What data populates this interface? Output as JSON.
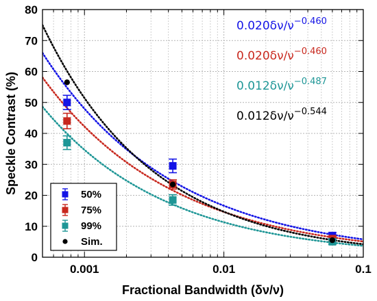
{
  "chart_data": {
    "type": "scatter",
    "xscale": "log",
    "xlim": [
      0.0005,
      0.1
    ],
    "ylim": [
      0,
      80
    ],
    "xlabel": "Fractional Bandwidth (δν/ν)",
    "ylabel": "Speckle Contrast (%)",
    "grid": true,
    "legend_position": "bottom-left",
    "x_ticks": [
      {
        "value": 0.001,
        "label": "0.001"
      },
      {
        "value": 0.01,
        "label": "0.01"
      },
      {
        "value": 0.1,
        "label": "0.1"
      }
    ],
    "y_ticks": [
      {
        "value": 0,
        "label": "0"
      },
      {
        "value": 10,
        "label": "10"
      },
      {
        "value": 20,
        "label": "20"
      },
      {
        "value": 30,
        "label": "30"
      },
      {
        "value": 40,
        "label": "40"
      },
      {
        "value": 50,
        "label": "50"
      },
      {
        "value": 60,
        "label": "60"
      },
      {
        "value": 70,
        "label": "70"
      },
      {
        "value": 80,
        "label": "80"
      }
    ],
    "series": [
      {
        "name": "50%",
        "color": "#1414e6",
        "marker": "square",
        "points": [
          {
            "x": 0.00075,
            "y": 50.0,
            "err": 2.3
          },
          {
            "x": 0.0043,
            "y": 29.5,
            "err": 2.2
          },
          {
            "x": 0.06,
            "y": 7.0,
            "err": 1.0
          }
        ],
        "fit": {
          "a": 0.02,
          "b": -0.46,
          "scale": 100
        },
        "annotation": {
          "prefix": "0.020",
          "expr": "δν/ν",
          "exponent": "−0.460"
        }
      },
      {
        "name": "75%",
        "color": "#c8281e",
        "marker": "square",
        "points": [
          {
            "x": 0.00075,
            "y": 44.0,
            "err": 2.5
          },
          {
            "x": 0.0043,
            "y": 23.5,
            "err": 1.5
          },
          {
            "x": 0.06,
            "y": 6.0,
            "err": 0.8
          }
        ],
        "fit": {
          "a": 0.02,
          "b": -0.46,
          "scale": 88
        },
        "annotation": {
          "prefix": "0.020",
          "expr": "δν/ν",
          "exponent": "−0.460"
        }
      },
      {
        "name": "99%",
        "color": "#1e9696",
        "marker": "square",
        "points": [
          {
            "x": 0.00075,
            "y": 37.0,
            "err": 2.2
          },
          {
            "x": 0.0043,
            "y": 18.5,
            "err": 1.7
          },
          {
            "x": 0.06,
            "y": 5.0,
            "err": 0.8
          }
        ],
        "fit": {
          "a": 0.012,
          "b": -0.487,
          "scale": 100
        },
        "annotation": {
          "prefix": "0.012",
          "expr": "δν/ν",
          "exponent": "−0.487"
        }
      },
      {
        "name": "Sim.",
        "color": "#000000",
        "marker": "circle",
        "points": [
          {
            "x": 0.00075,
            "y": 56.5
          },
          {
            "x": 0.0043,
            "y": 23.5
          },
          {
            "x": 0.06,
            "y": 5.5
          }
        ],
        "fit": {
          "a": 0.012,
          "b": -0.544,
          "scale": 100
        },
        "annotation": {
          "prefix": "0.012",
          "expr": "δν/ν",
          "exponent": "−0.544"
        }
      }
    ]
  }
}
